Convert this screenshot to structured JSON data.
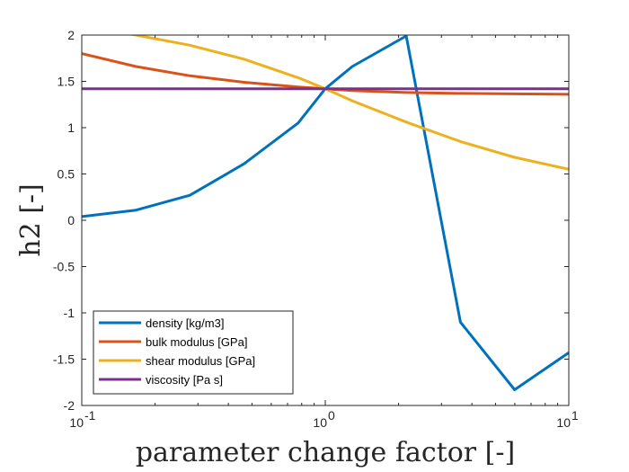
{
  "chart_data": {
    "type": "line",
    "xscale": "log",
    "xlabel": "parameter change factor [-]",
    "ylabel": "h2 [-]",
    "xlim": [
      0.1,
      10
    ],
    "ylim": [
      -2,
      2
    ],
    "xticks": [
      {
        "value": 0.1,
        "base": "10",
        "exp": "-1"
      },
      {
        "value": 1,
        "base": "10",
        "exp": "0"
      },
      {
        "value": 10,
        "base": "10",
        "exp": "1"
      }
    ],
    "yticks": [
      {
        "value": 2,
        "label": "2"
      },
      {
        "value": 1.5,
        "label": "1.5"
      },
      {
        "value": 1,
        "label": "1"
      },
      {
        "value": 0.5,
        "label": "0.5"
      },
      {
        "value": 0,
        "label": "0"
      },
      {
        "value": -0.5,
        "label": "-0.5"
      },
      {
        "value": -1,
        "label": "-1"
      },
      {
        "value": -1.5,
        "label": "-1.5"
      },
      {
        "value": -2,
        "label": "-2"
      }
    ],
    "grid": false,
    "legend_position": "bottom-left",
    "series": [
      {
        "name": "density [kg/m3]",
        "color": "#0072BD",
        "x": [
          0.1,
          0.167,
          0.278,
          0.464,
          0.774,
          1.0,
          1.29,
          2.15,
          3.59,
          5.99,
          10
        ],
        "y": [
          0.04,
          0.11,
          0.27,
          0.61,
          1.05,
          1.42,
          1.66,
          1.99,
          -1.1,
          -1.83,
          -1.43
        ]
      },
      {
        "name": "bulk modulus [GPa]",
        "color": "#D95319",
        "x": [
          0.1,
          0.167,
          0.278,
          0.464,
          0.774,
          1.0,
          1.29,
          2.15,
          3.59,
          5.99,
          10
        ],
        "y": [
          1.8,
          1.66,
          1.56,
          1.49,
          1.44,
          1.42,
          1.4,
          1.38,
          1.37,
          1.365,
          1.36
        ]
      },
      {
        "name": "shear modulus [GPa]",
        "color": "#EDB120",
        "x": [
          0.1,
          0.167,
          0.278,
          0.464,
          0.774,
          1.0,
          1.29,
          2.15,
          3.59,
          5.99,
          10
        ],
        "y": [
          2.1,
          2.0,
          1.89,
          1.74,
          1.54,
          1.42,
          1.29,
          1.06,
          0.85,
          0.68,
          0.55
        ]
      },
      {
        "name": "viscosity [Pa s]",
        "color": "#7E2F8E",
        "x": [
          0.1,
          0.167,
          0.278,
          0.464,
          0.774,
          1.0,
          1.29,
          2.15,
          3.59,
          5.99,
          10
        ],
        "y": [
          1.42,
          1.42,
          1.42,
          1.42,
          1.42,
          1.42,
          1.42,
          1.42,
          1.42,
          1.42,
          1.42
        ]
      }
    ]
  }
}
